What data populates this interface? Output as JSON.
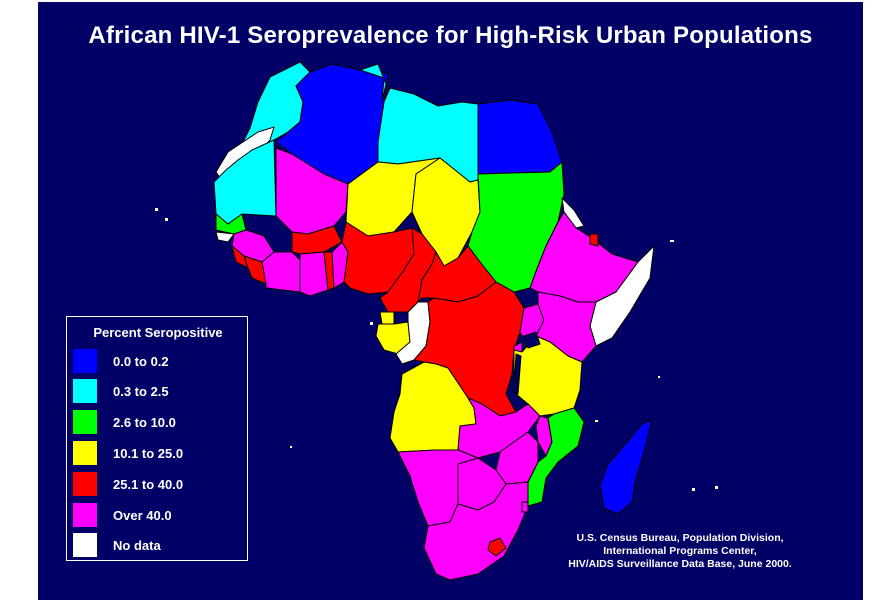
{
  "title": "African HIV-1 Seroprevalence for High-Risk Urban Populations",
  "legend": {
    "title": "Percent Seropositive",
    "items": [
      {
        "label": "0.0 to 0.2",
        "color": "#0000ff"
      },
      {
        "label": "0.3 to 2.5",
        "color": "#00ffff"
      },
      {
        "label": "2.6 to 10.0",
        "color": "#00ff00"
      },
      {
        "label": "10.1 to 25.0",
        "color": "#ffff00"
      },
      {
        "label": "25.1 to 40.0",
        "color": "#ff0000"
      },
      {
        "label": "Over 40.0",
        "color": "#ff00ff"
      },
      {
        "label": "No data",
        "color": "#ffffff"
      }
    ]
  },
  "source": {
    "line1": "U.S. Census Bureau, Population Division,",
    "line2": "International Programs Center,",
    "line3": "HIV/AIDS Surveillance Data Base, June 2000."
  },
  "colors": {
    "background": "#000066",
    "border": "#000000"
  }
}
